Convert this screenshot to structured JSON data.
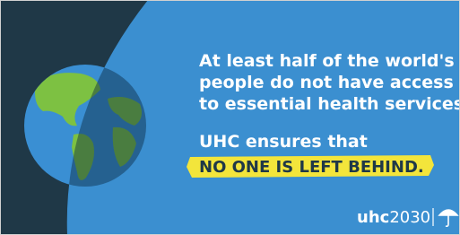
{
  "message": {
    "lines": [
      "At least half of the world's",
      "people do not have access",
      "to essential health services."
    ],
    "lead": "UHC ensures that",
    "highlight": "NO ONE IS LEFT BEHIND."
  },
  "logo": {
    "name": "uhc",
    "year": "2030"
  }
}
